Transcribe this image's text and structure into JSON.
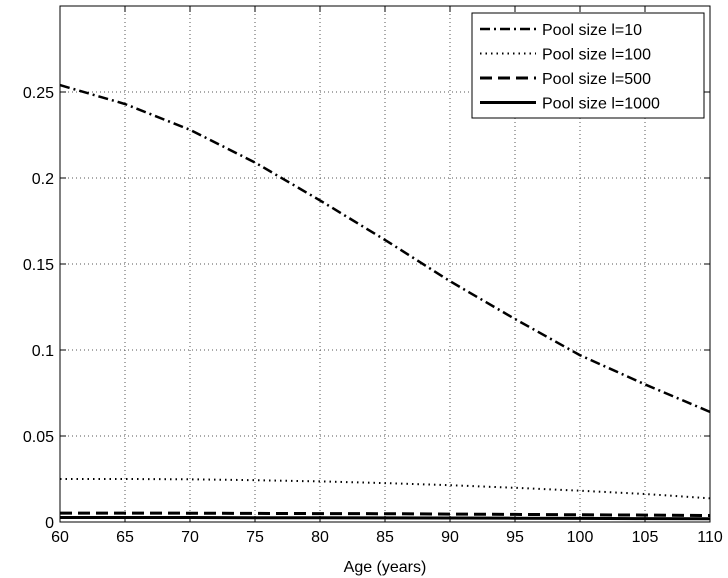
{
  "chart_data": {
    "type": "line",
    "title": "",
    "xlabel": "Age (years)",
    "ylabel": "",
    "xlim": [
      60,
      110
    ],
    "ylim": [
      0,
      0.3
    ],
    "x_ticks": [
      60,
      65,
      70,
      75,
      80,
      85,
      90,
      95,
      100,
      105,
      110
    ],
    "y_ticks": [
      0,
      0.05,
      0.1,
      0.15,
      0.2,
      0.25
    ],
    "y_tick_labels": [
      "0",
      "0.05",
      "0.1",
      "0.15",
      "0.2",
      "0.25"
    ],
    "grid": true,
    "legend_position": "top-right",
    "x": [
      60,
      65,
      70,
      75,
      80,
      85,
      90,
      95,
      100,
      105,
      110
    ],
    "series": [
      {
        "name": "Pool size l=10",
        "style": "dashdot",
        "values": [
          0.254,
          0.243,
          0.228,
          0.209,
          0.187,
          0.164,
          0.14,
          0.118,
          0.097,
          0.08,
          0.064
        ]
      },
      {
        "name": "Pool size l=100",
        "style": "dotted",
        "values": [
          0.025,
          0.025,
          0.0248,
          0.0243,
          0.0236,
          0.0226,
          0.0214,
          0.0199,
          0.0182,
          0.0163,
          0.0138
        ]
      },
      {
        "name": "Pool size l=500",
        "style": "dashed",
        "values": [
          0.0052,
          0.0052,
          0.0051,
          0.005,
          0.0049,
          0.0048,
          0.0046,
          0.0044,
          0.0042,
          0.004,
          0.0038
        ]
      },
      {
        "name": "Pool size l=1000",
        "style": "solid",
        "values": [
          0.0026,
          0.0026,
          0.0026,
          0.0025,
          0.0025,
          0.0024,
          0.0023,
          0.0022,
          0.0021,
          0.002,
          0.0019
        ]
      }
    ],
    "colors": {
      "line": "#000000",
      "grid": "#555555"
    }
  }
}
